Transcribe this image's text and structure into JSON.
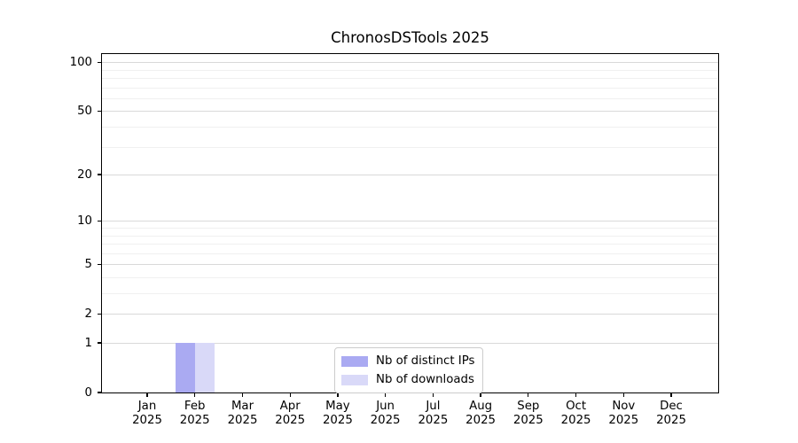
{
  "title": "ChronosDSTools 2025",
  "chart_data": {
    "type": "bar",
    "title": "ChronosDSTools 2025",
    "categories": [
      "Jan 2025",
      "Feb 2025",
      "Mar 2025",
      "Apr 2025",
      "May 2025",
      "Jun 2025",
      "Jul 2025",
      "Aug 2025",
      "Sep 2025",
      "Oct 2025",
      "Nov 2025",
      "Dec 2025"
    ],
    "series": [
      {
        "name": "Nb of distinct IPs",
        "color": "#aaaaf2",
        "values": [
          0,
          1,
          0,
          0,
          0,
          0,
          0,
          0,
          0,
          0,
          0,
          0
        ]
      },
      {
        "name": "Nb of downloads",
        "color": "#d9d9f8",
        "values": [
          0,
          1,
          0,
          0,
          0,
          0,
          0,
          0,
          0,
          0,
          0,
          0
        ]
      }
    ],
    "xlabel": "",
    "ylabel": "",
    "yscale": "log1p",
    "ylim": [
      0,
      113
    ],
    "yticks": [
      0,
      1,
      2,
      5,
      10,
      20,
      50,
      100
    ],
    "yticks_minor": [
      3,
      4,
      6,
      7,
      8,
      9,
      30,
      40,
      60,
      70,
      80,
      90
    ],
    "grid": true,
    "grid_major_color": "#d9d9d9",
    "grid_minor_color": "#f0f0f0",
    "legend_position": "lower center",
    "background_color": "#ffffff",
    "spine_color": "#000000"
  }
}
